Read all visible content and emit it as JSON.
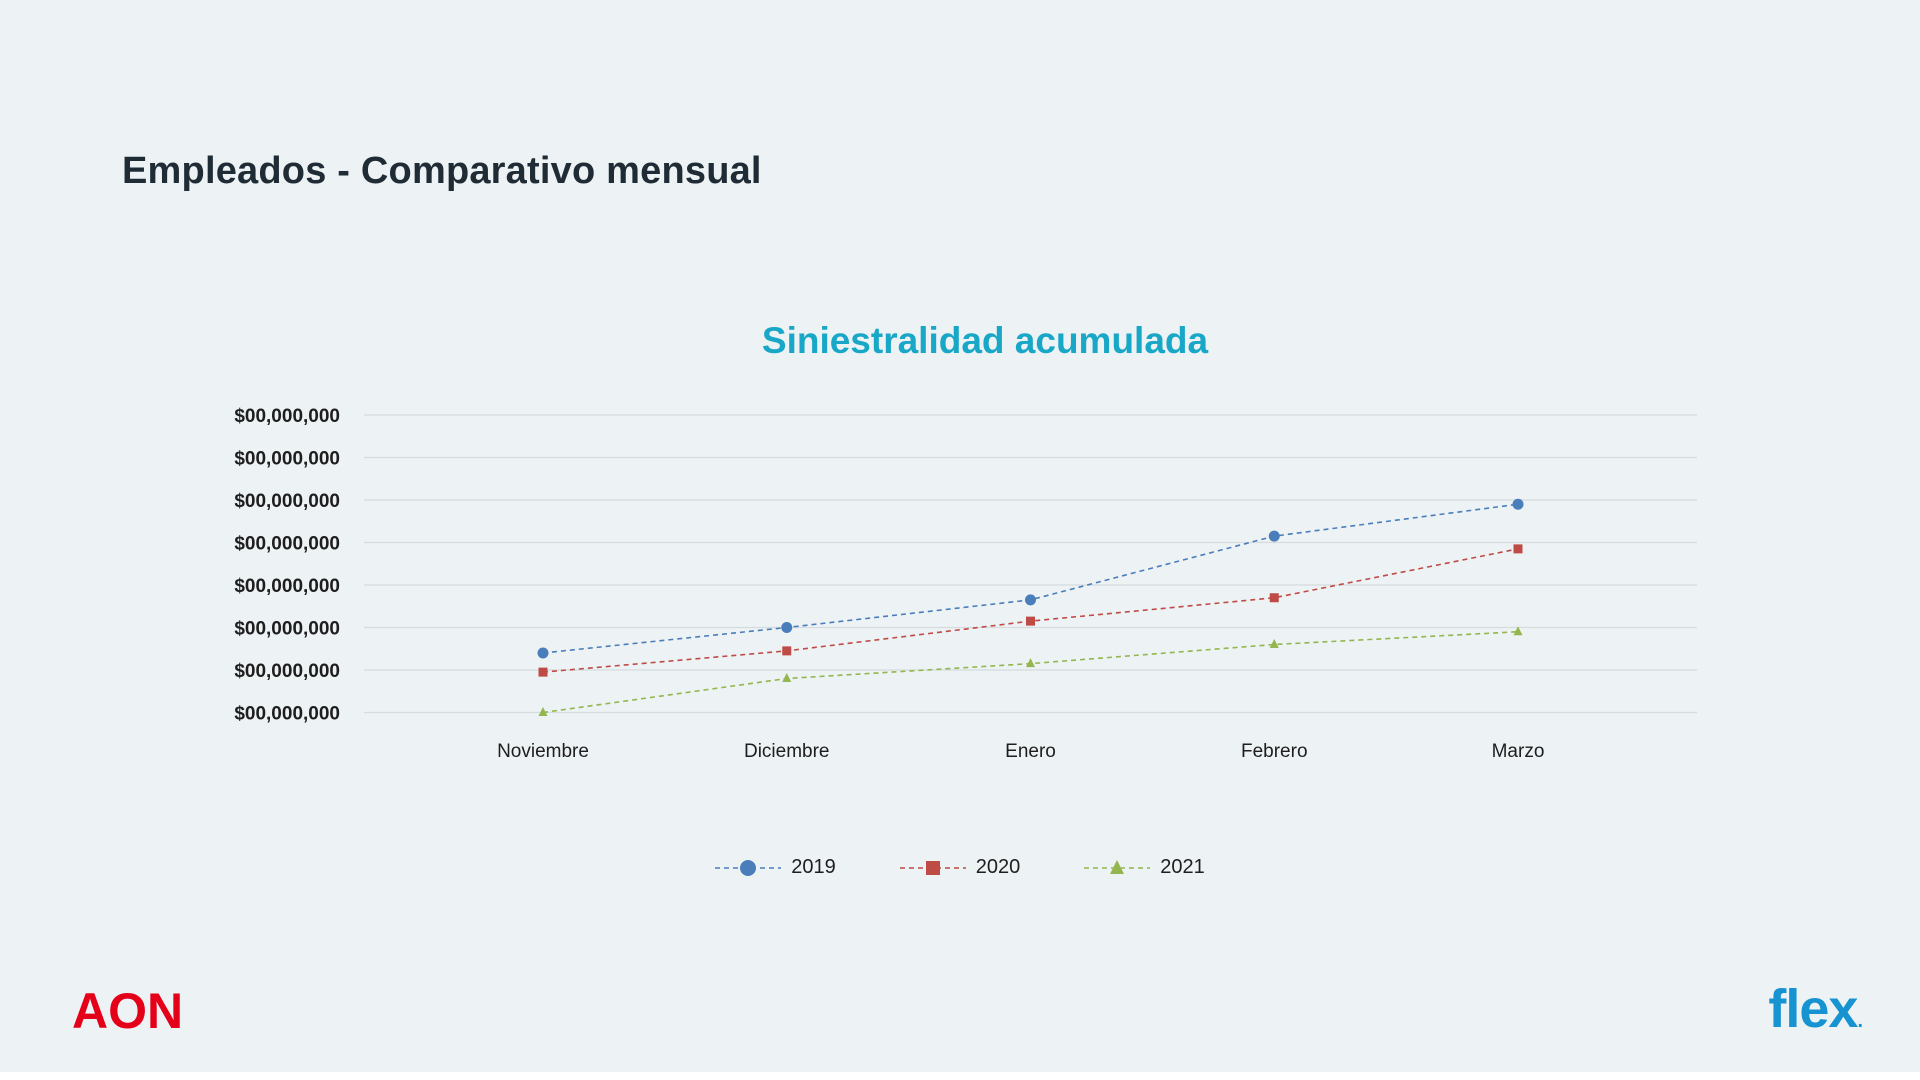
{
  "slide": {
    "title": "Empleados - Comparativo mensual"
  },
  "chart_data": {
    "type": "line",
    "title": "Siniestralidad acumulada",
    "title_color": "#18a7c7",
    "categories": [
      "Noviembre",
      "Diciembre",
      "Enero",
      "Febrero",
      "Marzo"
    ],
    "y_tick_labels": [
      "$00,000,000",
      "$00,000,000",
      "$00,000,000",
      "$00,000,000",
      "$00,000,000",
      "$00,000,000",
      "$00,000,000",
      "$00,000,000"
    ],
    "y_axis_note": "tick labels are anonymized placeholders; values estimated in gridline units",
    "ylim": [
      0,
      7
    ],
    "grid": true,
    "grid_color": "#d6dbde",
    "legend_position": "bottom",
    "line_style": "dashed",
    "series": [
      {
        "name": "2019",
        "color": "#4a7ebb",
        "marker": "circle",
        "values": [
          1.4,
          2.0,
          2.65,
          4.15,
          4.9
        ]
      },
      {
        "name": "2020",
        "color": "#bf4b47",
        "marker": "square",
        "values": [
          0.95,
          1.45,
          2.15,
          2.7,
          3.85
        ]
      },
      {
        "name": "2021",
        "color": "#94b64e",
        "marker": "triangle",
        "values": [
          0.0,
          0.8,
          1.15,
          1.6,
          1.9
        ]
      }
    ]
  },
  "footer": {
    "aon_logo": "AON",
    "aon_color": "#e50019",
    "flex_logo": "flex",
    "flex_mark": ".",
    "flex_color": "#1693d0"
  }
}
